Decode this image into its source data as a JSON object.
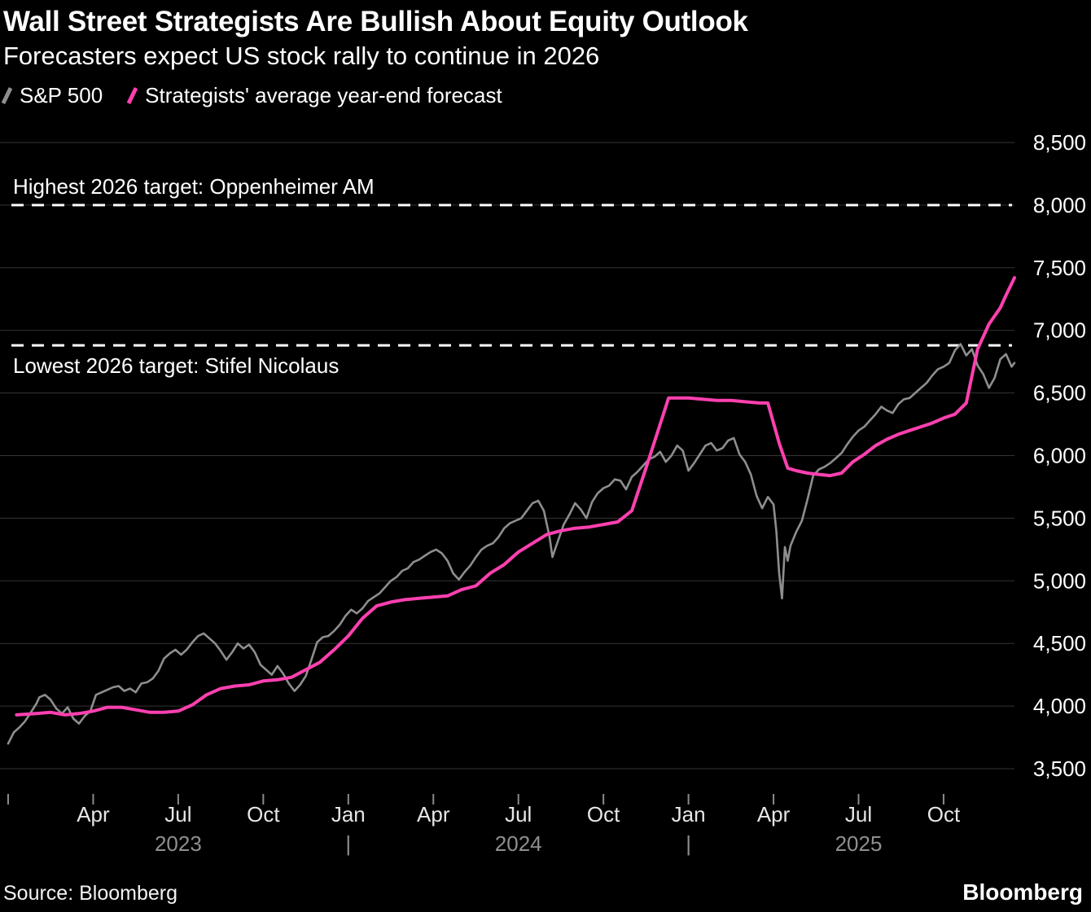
{
  "header": {
    "title": "Wall Street Strategists Are Bullish About Equity Outlook",
    "subtitle": "Forecasters expect US stock rally to continue in 2026"
  },
  "legend": [
    {
      "label": "S&P 500",
      "color": "#8e8e8e"
    },
    {
      "label": "Strategists' average year-end forecast",
      "color": "#ff40b0"
    }
  ],
  "footer": {
    "source": "Source: Bloomberg",
    "logo": "Bloomberg"
  },
  "chart_data": {
    "type": "line",
    "title": "Wall Street Strategists Are Bullish About Equity Outlook",
    "subtitle": "Forecasters expect US stock rally to continue in 2026",
    "x_unit": "months_since_jan_2023",
    "xlim": [
      0,
      35.5
    ],
    "ylim": [
      3300,
      8600
    ],
    "grid": "horizontal",
    "legend_position": "top-left",
    "background": "#000000",
    "yticks": [
      {
        "value": 8500,
        "label": "8,500"
      },
      {
        "value": 8000,
        "label": "8,000"
      },
      {
        "value": 7500,
        "label": "7,500"
      },
      {
        "value": 7000,
        "label": "7,000"
      },
      {
        "value": 6500,
        "label": "6,500"
      },
      {
        "value": 6000,
        "label": "6,000"
      },
      {
        "value": 5500,
        "label": "5,500"
      },
      {
        "value": 5000,
        "label": "5,000"
      },
      {
        "value": 4500,
        "label": "4,500"
      },
      {
        "value": 4000,
        "label": "4,000"
      },
      {
        "value": 3500,
        "label": "3,500"
      }
    ],
    "xticks": [
      {
        "month": 0,
        "label": ""
      },
      {
        "month": 3,
        "label": "Apr"
      },
      {
        "month": 6,
        "label": "Jul"
      },
      {
        "month": 9,
        "label": "Oct"
      },
      {
        "month": 12,
        "label": "Jan"
      },
      {
        "month": 15,
        "label": "Apr"
      },
      {
        "month": 18,
        "label": "Jul"
      },
      {
        "month": 21,
        "label": "Oct"
      },
      {
        "month": 24,
        "label": "Jan"
      },
      {
        "month": 27,
        "label": "Apr"
      },
      {
        "month": 30,
        "label": "Jul"
      },
      {
        "month": 33,
        "label": "Oct"
      }
    ],
    "year_labels": [
      {
        "month": 6,
        "label": "2023"
      },
      {
        "month": 12,
        "label": "|"
      },
      {
        "month": 18,
        "label": "2024"
      },
      {
        "month": 24,
        "label": "|"
      },
      {
        "month": 30,
        "label": "2025"
      }
    ],
    "ref_lines": [
      {
        "value": 8000,
        "label": "Highest 2026 target: Oppenheimer AM",
        "label_side": "above"
      },
      {
        "value": 6880,
        "label": "Lowest 2026 target: Stifel Nicolaus",
        "label_side": "below"
      }
    ],
    "series": [
      {
        "name": "S&P 500",
        "color": "#8e8e8e",
        "width": 2.6,
        "points": [
          [
            0,
            3700
          ],
          [
            0.2,
            3790
          ],
          [
            0.4,
            3830
          ],
          [
            0.6,
            3880
          ],
          [
            0.8,
            3950
          ],
          [
            1.0,
            4020
          ],
          [
            1.1,
            4070
          ],
          [
            1.3,
            4090
          ],
          [
            1.5,
            4050
          ],
          [
            1.7,
            3980
          ],
          [
            1.9,
            3940
          ],
          [
            2.1,
            3990
          ],
          [
            2.3,
            3900
          ],
          [
            2.5,
            3860
          ],
          [
            2.7,
            3920
          ],
          [
            2.9,
            3960
          ],
          [
            3.1,
            4090
          ],
          [
            3.3,
            4110
          ],
          [
            3.5,
            4130
          ],
          [
            3.7,
            4150
          ],
          [
            3.9,
            4160
          ],
          [
            4.1,
            4120
          ],
          [
            4.3,
            4140
          ],
          [
            4.5,
            4110
          ],
          [
            4.7,
            4180
          ],
          [
            4.9,
            4190
          ],
          [
            5.1,
            4220
          ],
          [
            5.3,
            4280
          ],
          [
            5.5,
            4380
          ],
          [
            5.7,
            4420
          ],
          [
            5.9,
            4450
          ],
          [
            6.1,
            4410
          ],
          [
            6.3,
            4450
          ],
          [
            6.5,
            4510
          ],
          [
            6.7,
            4560
          ],
          [
            6.9,
            4580
          ],
          [
            7.1,
            4540
          ],
          [
            7.3,
            4500
          ],
          [
            7.5,
            4440
          ],
          [
            7.7,
            4370
          ],
          [
            7.9,
            4430
          ],
          [
            8.1,
            4500
          ],
          [
            8.3,
            4460
          ],
          [
            8.5,
            4490
          ],
          [
            8.7,
            4430
          ],
          [
            8.9,
            4330
          ],
          [
            9.1,
            4290
          ],
          [
            9.3,
            4250
          ],
          [
            9.5,
            4320
          ],
          [
            9.7,
            4260
          ],
          [
            9.9,
            4180
          ],
          [
            10.1,
            4120
          ],
          [
            10.3,
            4170
          ],
          [
            10.5,
            4240
          ],
          [
            10.7,
            4370
          ],
          [
            10.9,
            4510
          ],
          [
            11.1,
            4550
          ],
          [
            11.3,
            4560
          ],
          [
            11.5,
            4600
          ],
          [
            11.7,
            4650
          ],
          [
            11.9,
            4720
          ],
          [
            12.1,
            4770
          ],
          [
            12.3,
            4740
          ],
          [
            12.5,
            4780
          ],
          [
            12.7,
            4840
          ],
          [
            12.9,
            4870
          ],
          [
            13.1,
            4900
          ],
          [
            13.3,
            4950
          ],
          [
            13.5,
            5000
          ],
          [
            13.7,
            5030
          ],
          [
            13.9,
            5080
          ],
          [
            14.1,
            5100
          ],
          [
            14.3,
            5150
          ],
          [
            14.5,
            5170
          ],
          [
            14.7,
            5200
          ],
          [
            14.9,
            5230
          ],
          [
            15.1,
            5250
          ],
          [
            15.3,
            5220
          ],
          [
            15.5,
            5160
          ],
          [
            15.7,
            5060
          ],
          [
            15.9,
            5010
          ],
          [
            16.1,
            5070
          ],
          [
            16.3,
            5120
          ],
          [
            16.5,
            5190
          ],
          [
            16.7,
            5250
          ],
          [
            16.9,
            5280
          ],
          [
            17.1,
            5300
          ],
          [
            17.3,
            5350
          ],
          [
            17.5,
            5420
          ],
          [
            17.7,
            5460
          ],
          [
            17.9,
            5480
          ],
          [
            18.1,
            5500
          ],
          [
            18.3,
            5560
          ],
          [
            18.5,
            5620
          ],
          [
            18.7,
            5640
          ],
          [
            18.9,
            5560
          ],
          [
            19.1,
            5350
          ],
          [
            19.2,
            5190
          ],
          [
            19.4,
            5320
          ],
          [
            19.6,
            5450
          ],
          [
            19.8,
            5530
          ],
          [
            20.0,
            5620
          ],
          [
            20.2,
            5570
          ],
          [
            20.4,
            5500
          ],
          [
            20.6,
            5630
          ],
          [
            20.8,
            5700
          ],
          [
            21.0,
            5740
          ],
          [
            21.2,
            5760
          ],
          [
            21.4,
            5810
          ],
          [
            21.6,
            5800
          ],
          [
            21.8,
            5730
          ],
          [
            22.0,
            5830
          ],
          [
            22.2,
            5870
          ],
          [
            22.4,
            5920
          ],
          [
            22.6,
            5970
          ],
          [
            22.8,
            5990
          ],
          [
            23.0,
            6030
          ],
          [
            23.2,
            5950
          ],
          [
            23.4,
            6000
          ],
          [
            23.6,
            6080
          ],
          [
            23.8,
            6040
          ],
          [
            24.0,
            5880
          ],
          [
            24.2,
            5940
          ],
          [
            24.4,
            6010
          ],
          [
            24.6,
            6080
          ],
          [
            24.8,
            6100
          ],
          [
            25.0,
            6040
          ],
          [
            25.2,
            6060
          ],
          [
            25.4,
            6120
          ],
          [
            25.6,
            6140
          ],
          [
            25.8,
            6010
          ],
          [
            26.0,
            5950
          ],
          [
            26.2,
            5850
          ],
          [
            26.4,
            5680
          ],
          [
            26.6,
            5580
          ],
          [
            26.8,
            5670
          ],
          [
            27.0,
            5610
          ],
          [
            27.1,
            5400
          ],
          [
            27.2,
            5060
          ],
          [
            27.3,
            4860
          ],
          [
            27.4,
            5270
          ],
          [
            27.5,
            5160
          ],
          [
            27.6,
            5280
          ],
          [
            27.8,
            5390
          ],
          [
            28.0,
            5480
          ],
          [
            28.2,
            5650
          ],
          [
            28.4,
            5840
          ],
          [
            28.6,
            5890
          ],
          [
            28.8,
            5910
          ],
          [
            29.0,
            5940
          ],
          [
            29.2,
            5980
          ],
          [
            29.4,
            6020
          ],
          [
            29.6,
            6090
          ],
          [
            29.8,
            6150
          ],
          [
            30.0,
            6200
          ],
          [
            30.2,
            6230
          ],
          [
            30.4,
            6280
          ],
          [
            30.6,
            6330
          ],
          [
            30.8,
            6390
          ],
          [
            31.0,
            6360
          ],
          [
            31.2,
            6340
          ],
          [
            31.4,
            6410
          ],
          [
            31.6,
            6450
          ],
          [
            31.8,
            6460
          ],
          [
            32.0,
            6500
          ],
          [
            32.2,
            6540
          ],
          [
            32.4,
            6580
          ],
          [
            32.6,
            6640
          ],
          [
            32.8,
            6690
          ],
          [
            33.0,
            6710
          ],
          [
            33.2,
            6740
          ],
          [
            33.4,
            6840
          ],
          [
            33.6,
            6890
          ],
          [
            33.8,
            6800
          ],
          [
            34.0,
            6850
          ],
          [
            34.2,
            6720
          ],
          [
            34.4,
            6650
          ],
          [
            34.6,
            6540
          ],
          [
            34.8,
            6620
          ],
          [
            35.0,
            6770
          ],
          [
            35.2,
            6810
          ],
          [
            35.4,
            6710
          ],
          [
            35.5,
            6740
          ]
        ]
      },
      {
        "name": "Strategists' average year-end forecast",
        "color": "#ff40b0",
        "width": 4,
        "points": [
          [
            0.3,
            3930
          ],
          [
            1.0,
            3940
          ],
          [
            1.5,
            3950
          ],
          [
            2.0,
            3930
          ],
          [
            2.5,
            3940
          ],
          [
            3.0,
            3960
          ],
          [
            3.5,
            3990
          ],
          [
            4.0,
            3990
          ],
          [
            4.5,
            3970
          ],
          [
            5.0,
            3950
          ],
          [
            5.5,
            3950
          ],
          [
            6.0,
            3960
          ],
          [
            6.5,
            4010
          ],
          [
            7.0,
            4090
          ],
          [
            7.5,
            4140
          ],
          [
            8.0,
            4160
          ],
          [
            8.5,
            4170
          ],
          [
            9.0,
            4200
          ],
          [
            9.5,
            4210
          ],
          [
            10.0,
            4230
          ],
          [
            10.5,
            4290
          ],
          [
            11.0,
            4350
          ],
          [
            11.5,
            4450
          ],
          [
            12.0,
            4560
          ],
          [
            12.5,
            4700
          ],
          [
            13.0,
            4800
          ],
          [
            13.5,
            4830
          ],
          [
            14.0,
            4850
          ],
          [
            14.5,
            4860
          ],
          [
            15.0,
            4870
          ],
          [
            15.5,
            4880
          ],
          [
            16.0,
            4930
          ],
          [
            16.5,
            4960
          ],
          [
            17.0,
            5060
          ],
          [
            17.5,
            5130
          ],
          [
            18.0,
            5230
          ],
          [
            18.5,
            5300
          ],
          [
            19.0,
            5370
          ],
          [
            19.5,
            5400
          ],
          [
            20.0,
            5420
          ],
          [
            20.5,
            5430
          ],
          [
            21.0,
            5450
          ],
          [
            21.5,
            5470
          ],
          [
            22.0,
            5560
          ],
          [
            22.5,
            5900
          ],
          [
            23.0,
            6250
          ],
          [
            23.3,
            6460
          ],
          [
            24.0,
            6460
          ],
          [
            24.5,
            6450
          ],
          [
            25.0,
            6440
          ],
          [
            25.5,
            6440
          ],
          [
            26.0,
            6430
          ],
          [
            26.5,
            6420
          ],
          [
            26.8,
            6420
          ],
          [
            27.2,
            6100
          ],
          [
            27.5,
            5900
          ],
          [
            27.8,
            5880
          ],
          [
            28.2,
            5860
          ],
          [
            28.6,
            5850
          ],
          [
            29.0,
            5840
          ],
          [
            29.4,
            5860
          ],
          [
            29.8,
            5950
          ],
          [
            30.2,
            6010
          ],
          [
            30.6,
            6080
          ],
          [
            31.0,
            6130
          ],
          [
            31.4,
            6170
          ],
          [
            31.8,
            6200
          ],
          [
            32.2,
            6230
          ],
          [
            32.6,
            6260
          ],
          [
            33.0,
            6300
          ],
          [
            33.4,
            6330
          ],
          [
            33.8,
            6420
          ],
          [
            34.2,
            6850
          ],
          [
            34.6,
            7050
          ],
          [
            35.0,
            7180
          ],
          [
            35.2,
            7280
          ],
          [
            35.5,
            7420
          ]
        ]
      }
    ]
  }
}
